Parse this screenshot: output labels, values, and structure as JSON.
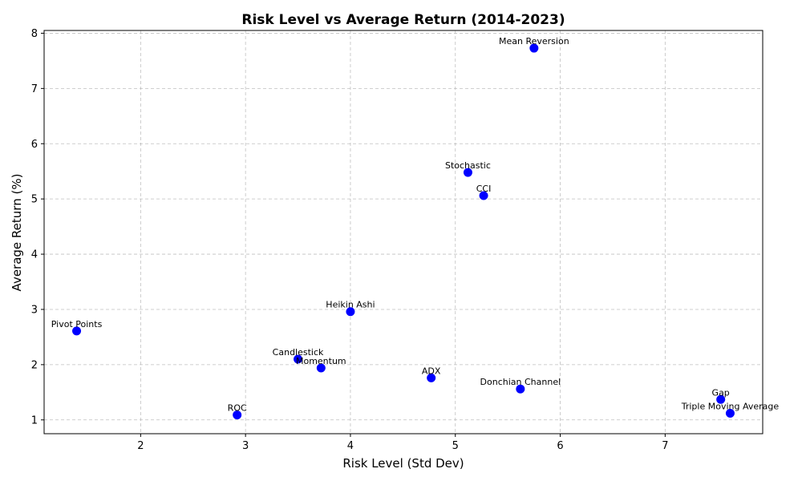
{
  "chart_data": {
    "type": "scatter",
    "title": "Risk Level vs Average Return (2014-2023)",
    "xlabel": "Risk Level (Std Dev)",
    "ylabel": "Average Return (%)",
    "xlim": [
      1.08,
      7.93
    ],
    "ylim": [
      0.75,
      8.05
    ],
    "xticks": [
      2,
      3,
      4,
      5,
      6,
      7
    ],
    "yticks": [
      1,
      2,
      3,
      4,
      5,
      6,
      7,
      8
    ],
    "grid": true,
    "point_color": "#0000ff",
    "points": [
      {
        "label": "Mean Reversion",
        "x": 5.75,
        "y": 7.73
      },
      {
        "label": "Stochastic",
        "x": 5.12,
        "y": 5.48
      },
      {
        "label": "CCI",
        "x": 5.27,
        "y": 5.06
      },
      {
        "label": "Heikin Ashi",
        "x": 4.0,
        "y": 2.96
      },
      {
        "label": "Pivot Points",
        "x": 1.39,
        "y": 2.61
      },
      {
        "label": "Candlestick",
        "x": 3.5,
        "y": 2.1
      },
      {
        "label": "Momentum",
        "x": 3.72,
        "y": 1.94
      },
      {
        "label": "ADX",
        "x": 4.77,
        "y": 1.76
      },
      {
        "label": "Donchian Channel",
        "x": 5.62,
        "y": 1.56
      },
      {
        "label": "Gap",
        "x": 7.53,
        "y": 1.37
      },
      {
        "label": "Triple Moving Average",
        "x": 7.62,
        "y": 1.12
      },
      {
        "label": "ROC",
        "x": 2.92,
        "y": 1.09
      }
    ]
  }
}
